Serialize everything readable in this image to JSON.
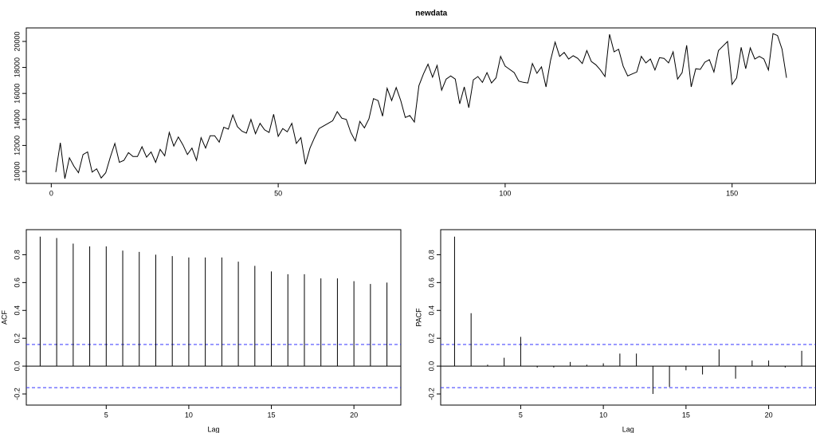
{
  "chart_data": [
    {
      "type": "line",
      "title": "newdata",
      "color": "#000000",
      "x": [
        1,
        2,
        3,
        4,
        5,
        6,
        7,
        8,
        9,
        10,
        11,
        12,
        13,
        14,
        15,
        16,
        17,
        18,
        19,
        20,
        21,
        22,
        23,
        24,
        25,
        26,
        27,
        28,
        29,
        30,
        31,
        32,
        33,
        34,
        35,
        36,
        37,
        38,
        39,
        40,
        41,
        42,
        43,
        44,
        45,
        46,
        47,
        48,
        49,
        50,
        51,
        52,
        53,
        54,
        55,
        56,
        57,
        58,
        59,
        60,
        61,
        62,
        63,
        64,
        65,
        66,
        67,
        68,
        69,
        70,
        71,
        72,
        73,
        74,
        75,
        76,
        77,
        78,
        79,
        80,
        81,
        82,
        83,
        84,
        85,
        86,
        87,
        88,
        89,
        90,
        91,
        92,
        93,
        94,
        95,
        96,
        97,
        98,
        99,
        100,
        101,
        102,
        103,
        104,
        105,
        106,
        107,
        108,
        109,
        110,
        111,
        112,
        113,
        114,
        115,
        116,
        117,
        118,
        119,
        120,
        121,
        122,
        123,
        124,
        125,
        126,
        127,
        128,
        129,
        130,
        131,
        132,
        133,
        134,
        135,
        136,
        137,
        138,
        139,
        140,
        141,
        142,
        143,
        144,
        145,
        146,
        147,
        148,
        149,
        150,
        151,
        152,
        153,
        154,
        155,
        156,
        157,
        158,
        159,
        160,
        161,
        162
      ],
      "values": [
        9950,
        12200,
        9450,
        11050,
        10400,
        9900,
        11300,
        11500,
        9950,
        10200,
        9500,
        9900,
        11100,
        12150,
        10700,
        10850,
        11450,
        11150,
        11150,
        11900,
        11100,
        11500,
        10700,
        11700,
        11200,
        13000,
        11950,
        12650,
        12050,
        11300,
        11800,
        10850,
        12600,
        11800,
        12750,
        12750,
        12250,
        13400,
        13250,
        14350,
        13450,
        13100,
        12950,
        14000,
        12900,
        13700,
        13200,
        13000,
        14400,
        12700,
        13300,
        13050,
        13700,
        12150,
        12600,
        10550,
        11800,
        12600,
        13300,
        13500,
        13700,
        13900,
        14600,
        14100,
        14000,
        13000,
        12350,
        13850,
        13350,
        14050,
        15600,
        15450,
        14250,
        16400,
        15450,
        16450,
        15450,
        14150,
        14300,
        13800,
        16600,
        17500,
        18250,
        17250,
        18150,
        16250,
        17100,
        17350,
        17100,
        15200,
        16500,
        14900,
        17050,
        17300,
        16850,
        17600,
        16800,
        17200,
        18850,
        18100,
        17850,
        17600,
        16950,
        16850,
        16800,
        18300,
        17550,
        18050,
        16500,
        18550,
        19950,
        18850,
        19150,
        18650,
        18900,
        18700,
        18300,
        19300,
        18450,
        18200,
        17800,
        17300,
        20550,
        19200,
        19400,
        18100,
        17350,
        17500,
        17650,
        18850,
        18350,
        18650,
        17800,
        18750,
        18700,
        18350,
        19200,
        17100,
        17600,
        19700,
        16500,
        17900,
        17850,
        18400,
        18600,
        17650,
        19300,
        19650,
        20000,
        16700,
        17200,
        19550,
        17900,
        19500,
        18650,
        18850,
        18650,
        17800,
        20600,
        20450,
        19400,
        17200
      ],
      "xlim": [
        -5.5,
        168.4
      ],
      "ylim": [
        9080,
        21040
      ],
      "xticks": [
        0,
        50,
        100,
        150
      ],
      "yticks": [
        10000,
        12000,
        14000,
        16000,
        18000,
        20000
      ]
    },
    {
      "type": "stem",
      "xlabel": "Lag",
      "ylabel": "ACF",
      "color": "#000000",
      "ci": 0.155,
      "ci_color": "#3333ff",
      "x": [
        1,
        2,
        3,
        4,
        5,
        6,
        7,
        8,
        9,
        10,
        11,
        12,
        13,
        14,
        15,
        16,
        17,
        18,
        19,
        20,
        21,
        22
      ],
      "values": [
        0.93,
        0.92,
        0.88,
        0.86,
        0.86,
        0.83,
        0.82,
        0.8,
        0.79,
        0.78,
        0.78,
        0.78,
        0.75,
        0.72,
        0.68,
        0.66,
        0.66,
        0.63,
        0.63,
        0.61,
        0.59,
        0.6
      ],
      "xlim": [
        0.16,
        22.84
      ],
      "ylim": [
        -0.28,
        0.98
      ],
      "xticks": [
        5,
        10,
        15,
        20
      ],
      "yticks": [
        -0.2,
        {
          "value": 0,
          "label": "0.0"
        },
        0.2,
        0.4,
        0.6,
        0.8
      ]
    },
    {
      "type": "stem",
      "xlabel": "Lag",
      "ylabel": "PACF",
      "color": "#000000",
      "ci": 0.155,
      "ci_color": "#3333ff",
      "x": [
        1,
        2,
        3,
        4,
        5,
        6,
        7,
        8,
        9,
        10,
        11,
        12,
        13,
        14,
        15,
        16,
        17,
        18,
        19,
        20,
        21,
        22
      ],
      "values": [
        0.93,
        0.38,
        0.01,
        0.06,
        0.21,
        -0.01,
        -0.01,
        0.03,
        0.01,
        0.02,
        0.09,
        0.09,
        -0.2,
        -0.15,
        -0.03,
        -0.06,
        0.12,
        -0.09,
        0.04,
        0.04,
        -0.01,
        0.11
      ],
      "xlim": [
        0.16,
        22.84
      ],
      "ylim": [
        -0.28,
        0.98
      ],
      "xticks": [
        5,
        10,
        15,
        20
      ],
      "yticks": [
        -0.2,
        {
          "value": 0,
          "label": "0.0"
        },
        0.2,
        0.4,
        0.6,
        0.8
      ]
    }
  ]
}
